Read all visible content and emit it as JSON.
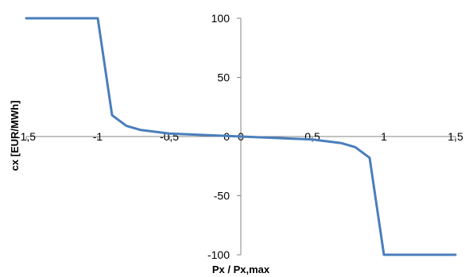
{
  "chart_data": {
    "type": "line",
    "title": "",
    "xlabel": "Px / Px,max",
    "ylabel": "cx [EUR/MWh]",
    "xlim": [
      -1.5,
      1.5
    ],
    "ylim": [
      -100,
      100
    ],
    "x_ticks": [
      -1.5,
      -1,
      -0.5,
      0,
      0.5,
      1,
      1.5
    ],
    "x_tick_labels": [
      "-1,5",
      "-1",
      "-0,5",
      "0",
      "0,5",
      "1",
      "1,5"
    ],
    "y_ticks": [
      100,
      50,
      0,
      -50,
      -100
    ],
    "y_tick_labels": [
      "100",
      "50",
      "0",
      "-50",
      "-100"
    ],
    "grid": false,
    "legend": "none",
    "line_color": "#4a7ebb",
    "series": [
      {
        "x": [
          -1.5,
          -1.0,
          -0.9,
          -0.8,
          -0.7,
          -0.6,
          -0.5,
          -0.4,
          -0.3,
          -0.2,
          -0.1,
          0.0,
          0.1,
          0.2,
          0.3,
          0.4,
          0.5,
          0.6,
          0.7,
          0.8,
          0.9,
          1.0,
          1.5
        ],
        "y": [
          100,
          100,
          18,
          9,
          5.5,
          4,
          2.5,
          2,
          1.5,
          1,
          0.5,
          0,
          -0.5,
          -1,
          -1.5,
          -2,
          -2.5,
          -4,
          -5.5,
          -9,
          -18,
          -100,
          -100
        ]
      }
    ]
  }
}
